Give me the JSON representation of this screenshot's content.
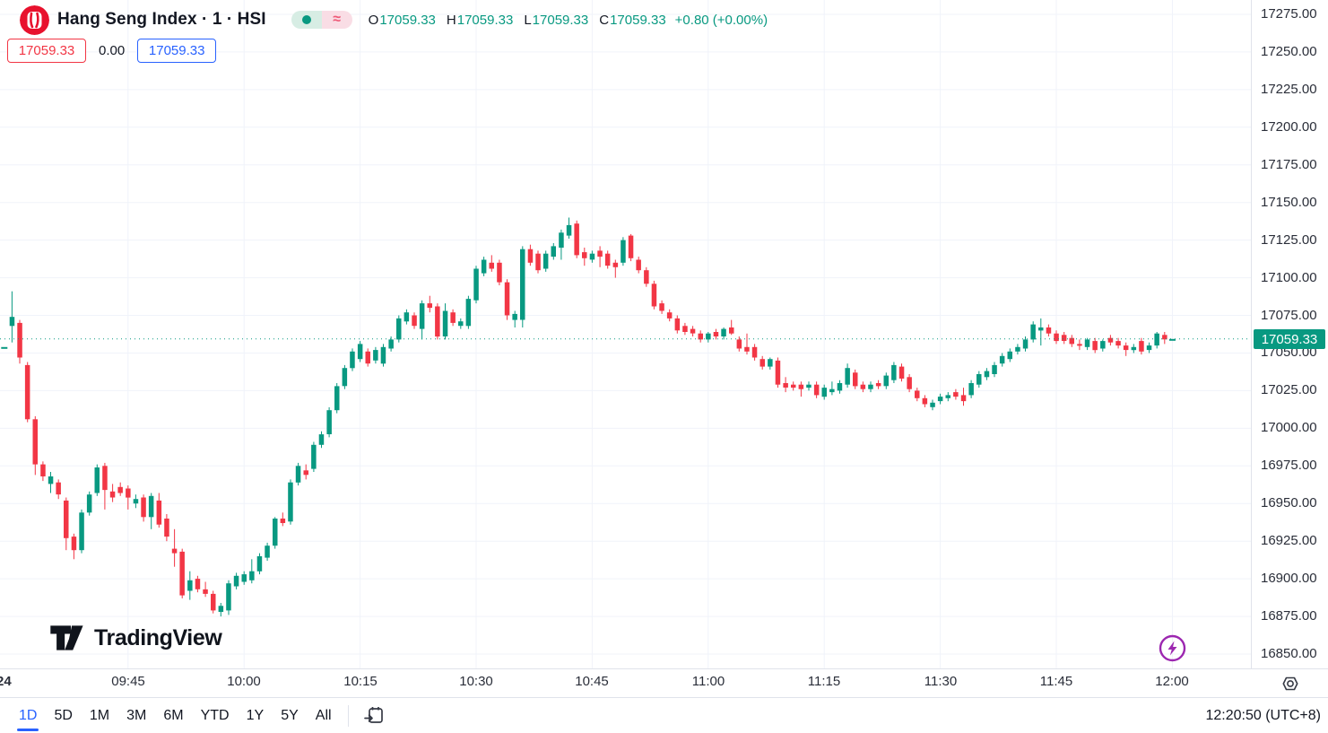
{
  "header": {
    "symbol_title": "Hang Seng Index · 1 · HSI",
    "ohlc": {
      "o_label": "O",
      "o": "17059.33",
      "h_label": "H",
      "h": "17059.33",
      "l_label": "L",
      "l": "17059.33",
      "c_label": "C",
      "c": "17059.33",
      "change": "+0.80 (+0.00%)"
    },
    "sell_price": "17059.33",
    "spread": "0.00",
    "buy_price": "17059.33"
  },
  "price_axis": {
    "ticks": [
      17275,
      17250,
      17225,
      17200,
      17175,
      17150,
      17125,
      17100,
      17075,
      17050,
      17025,
      17000,
      16975,
      16950,
      16925,
      16900,
      16875,
      16850
    ],
    "current_label": "17059.33"
  },
  "time_axis": {
    "date_label": "24",
    "ticks": [
      "09:45",
      "10:00",
      "10:15",
      "10:30",
      "10:45",
      "11:00",
      "11:15",
      "11:30",
      "11:45",
      "12:00"
    ]
  },
  "toolbar": {
    "ranges": [
      "1D",
      "5D",
      "1M",
      "3M",
      "6M",
      "YTD",
      "1Y",
      "5Y",
      "All"
    ],
    "active": "1D",
    "clock": "12:20:50 (UTC+8)"
  },
  "logo": {
    "wordmark": "TradingView"
  },
  "colors": {
    "up": "#089981",
    "down": "#f23645",
    "grid": "#f0f3fa",
    "dotted_line": "#089981",
    "price_tag_bg": "#089981",
    "accent_blue": "#2962ff",
    "sell_red": "#f23645",
    "purple": "#9c27b0"
  },
  "chart_data": {
    "type": "candlestick",
    "title": "Hang Seng Index 1-minute candles",
    "symbol": "HSI",
    "interval": "1",
    "session_start": "09:30",
    "session_end": "12:00",
    "interval_min": 1,
    "current_price": 17059.33,
    "change_text": "+0.80 (+0.00%)",
    "y_axis": {
      "min": 16850,
      "max": 17275,
      "tick_step": 25,
      "grid": true
    },
    "x_ticks": [
      "09:45",
      "10:00",
      "10:15",
      "10:30",
      "10:45",
      "11:00",
      "11:15",
      "11:30",
      "11:45",
      "12:00"
    ],
    "pre_session_tick": {
      "time": "09:29",
      "price": 17054
    },
    "candles_format": [
      "open",
      "high",
      "low",
      "close"
    ],
    "candles": [
      [
        17068,
        17091,
        17057,
        17074
      ],
      [
        17070,
        17072,
        17043,
        17047
      ],
      [
        17042,
        17044,
        17004,
        17006
      ],
      [
        17006,
        17008,
        16969,
        16976
      ],
      [
        16976,
        16978,
        16965,
        16968
      ],
      [
        16963,
        16971,
        16957,
        16968
      ],
      [
        16964,
        16966,
        16953,
        16956
      ],
      [
        16952,
        16954,
        16919,
        16927
      ],
      [
        16928,
        16930,
        16913,
        16919
      ],
      [
        16919,
        16946,
        16917,
        16944
      ],
      [
        16944,
        16958,
        16942,
        16956
      ],
      [
        16957,
        16976,
        16955,
        16974
      ],
      [
        16975,
        16977,
        16946,
        16959
      ],
      [
        16958,
        16963,
        16951,
        16954
      ],
      [
        16961,
        16964,
        16955,
        16957
      ],
      [
        16960,
        16962,
        16946,
        16954
      ],
      [
        16950,
        16956,
        16947,
        16953
      ],
      [
        16954,
        16956,
        16938,
        16941
      ],
      [
        16941,
        16957,
        16933,
        16955
      ],
      [
        16952,
        16957,
        16934,
        16936
      ],
      [
        16940,
        16943,
        16925,
        16928
      ],
      [
        16920,
        16933,
        16908,
        16917
      ],
      [
        16918,
        16920,
        16887,
        16889
      ],
      [
        16892,
        16905,
        16886,
        16899
      ],
      [
        16900,
        16902,
        16891,
        16893
      ],
      [
        16893,
        16898,
        16888,
        16890
      ],
      [
        16890,
        16892,
        16877,
        16879
      ],
      [
        16878,
        16884,
        16875,
        16882
      ],
      [
        16879,
        16899,
        16876,
        16897
      ],
      [
        16895,
        16904,
        16893,
        16902
      ],
      [
        16898,
        16905,
        16896,
        16903
      ],
      [
        16899,
        16913,
        16897,
        16905
      ],
      [
        16905,
        16917,
        16903,
        16915
      ],
      [
        16914,
        16924,
        16912,
        16922
      ],
      [
        16922,
        16941,
        16920,
        16940
      ],
      [
        16940,
        16944,
        16935,
        16937
      ],
      [
        16938,
        16966,
        16936,
        16964
      ],
      [
        16964,
        16977,
        16962,
        16975
      ],
      [
        16972,
        16976,
        16966,
        16969
      ],
      [
        16973,
        16991,
        16971,
        16989
      ],
      [
        16989,
        16998,
        16987,
        16996
      ],
      [
        16996,
        17014,
        16994,
        17012
      ],
      [
        17012,
        17030,
        17010,
        17028
      ],
      [
        17028,
        17042,
        17026,
        17040
      ],
      [
        17040,
        17053,
        17038,
        17051
      ],
      [
        17046,
        17058,
        17044,
        17056
      ],
      [
        17051,
        17053,
        17041,
        17043
      ],
      [
        17045,
        17054,
        17043,
        17052
      ],
      [
        17043,
        17056,
        17041,
        17054
      ],
      [
        17053,
        17061,
        17051,
        17059
      ],
      [
        17059,
        17075,
        17057,
        17073
      ],
      [
        17071,
        17079,
        17069,
        17077
      ],
      [
        17075,
        17077,
        17066,
        17068
      ],
      [
        17066,
        17085,
        17059,
        17083
      ],
      [
        17083,
        17088,
        17077,
        17080
      ],
      [
        17081,
        17083,
        17059,
        17061
      ],
      [
        17061,
        17083,
        17059,
        17078
      ],
      [
        17077,
        17079,
        17068,
        17070
      ],
      [
        17068,
        17073,
        17066,
        17071
      ],
      [
        17068,
        17088,
        17066,
        17086
      ],
      [
        17085,
        17108,
        17083,
        17106
      ],
      [
        17103,
        17114,
        17101,
        17112
      ],
      [
        17110,
        17115,
        17104,
        17106
      ],
      [
        17110,
        17112,
        17095,
        17097
      ],
      [
        17097,
        17099,
        17072,
        17075
      ],
      [
        17072,
        17078,
        17067,
        17076
      ],
      [
        17072,
        17121,
        17067,
        17119
      ],
      [
        17119,
        17122,
        17108,
        17110
      ],
      [
        17116,
        17118,
        17103,
        17105
      ],
      [
        17106,
        17118,
        17104,
        17116
      ],
      [
        17114,
        17123,
        17112,
        17121
      ],
      [
        17120,
        17132,
        17112,
        17130
      ],
      [
        17128,
        17140,
        17126,
        17135
      ],
      [
        17136,
        17138,
        17113,
        17115
      ],
      [
        17117,
        17120,
        17108,
        17113
      ],
      [
        17112,
        17118,
        17110,
        17116
      ],
      [
        17118,
        17121,
        17107,
        17114
      ],
      [
        17116,
        17118,
        17106,
        17108
      ],
      [
        17110,
        17112,
        17100,
        17107
      ],
      [
        17110,
        17127,
        17108,
        17125
      ],
      [
        17128,
        17129,
        17111,
        17113
      ],
      [
        17112,
        17114,
        17103,
        17105
      ],
      [
        17105,
        17107,
        17094,
        17096
      ],
      [
        17096,
        17098,
        17079,
        17081
      ],
      [
        17083,
        17085,
        17076,
        17078
      ],
      [
        17077,
        17079,
        17071,
        17073
      ],
      [
        17073,
        17075,
        17063,
        17065
      ],
      [
        17068,
        17070,
        17062,
        17064
      ],
      [
        17066,
        17068,
        17061,
        17063
      ],
      [
        17063,
        17065,
        17057,
        17059
      ],
      [
        17059,
        17064,
        17057,
        17063
      ],
      [
        17064,
        17066,
        17059,
        17061
      ],
      [
        17061,
        17067,
        17059,
        17066
      ],
      [
        17067,
        17072,
        17062,
        17063
      ],
      [
        17059,
        17061,
        17051,
        17053
      ],
      [
        17054,
        17063,
        17049,
        17051
      ],
      [
        17054,
        17056,
        17045,
        17047
      ],
      [
        17046,
        17048,
        17039,
        17041
      ],
      [
        17041,
        17047,
        17039,
        17046
      ],
      [
        17045,
        17047,
        17027,
        17029
      ],
      [
        17030,
        17034,
        17024,
        17027
      ],
      [
        17029,
        17031,
        17025,
        17027
      ],
      [
        17029,
        17031,
        17021,
        17026
      ],
      [
        17027,
        17031,
        17025,
        17029
      ],
      [
        17029,
        17031,
        17020,
        17022
      ],
      [
        17021,
        17029,
        17019,
        17027
      ],
      [
        17024,
        17031,
        17022,
        17026
      ],
      [
        17025,
        17032,
        17023,
        17030
      ],
      [
        17029,
        17043,
        17027,
        17040
      ],
      [
        17037,
        17039,
        17026,
        17028
      ],
      [
        17029,
        17031,
        17024,
        17026
      ],
      [
        17026,
        17031,
        17024,
        17029
      ],
      [
        17030,
        17032,
        17026,
        17028
      ],
      [
        17028,
        17037,
        17026,
        17035
      ],
      [
        17032,
        17044,
        17030,
        17042
      ],
      [
        17041,
        17043,
        17031,
        17033
      ],
      [
        17034,
        17036,
        17024,
        17026
      ],
      [
        17025,
        17027,
        17018,
        17020
      ],
      [
        17020,
        17022,
        17014,
        17016
      ],
      [
        17014,
        17019,
        17012,
        17017
      ],
      [
        17018,
        17023,
        17016,
        17021
      ],
      [
        17020,
        17024,
        17018,
        17022
      ],
      [
        17024,
        17026,
        17019,
        17021
      ],
      [
        17022,
        17027,
        17015,
        17018
      ],
      [
        17022,
        17032,
        17020,
        17030
      ],
      [
        17029,
        17038,
        17027,
        17036
      ],
      [
        17034,
        17040,
        17032,
        17038
      ],
      [
        17036,
        17044,
        17034,
        17042
      ],
      [
        17043,
        17050,
        17041,
        17048
      ],
      [
        17046,
        17053,
        17044,
        17051
      ],
      [
        17051,
        17056,
        17049,
        17054
      ],
      [
        17053,
        17061,
        17051,
        17059
      ],
      [
        17059,
        17071,
        17057,
        17069
      ],
      [
        17065,
        17073,
        17055,
        17067
      ],
      [
        17067,
        17069,
        17061,
        17063
      ],
      [
        17063,
        17065,
        17056,
        17058
      ],
      [
        17062,
        17064,
        17056,
        17058
      ],
      [
        17060,
        17062,
        17054,
        17056
      ],
      [
        17056,
        17059,
        17052,
        17055
      ],
      [
        17054,
        17060,
        17052,
        17059
      ],
      [
        17058,
        17060,
        17050,
        17052
      ],
      [
        17053,
        17059,
        17051,
        17058
      ],
      [
        17060,
        17062,
        17055,
        17057
      ],
      [
        17058,
        17060,
        17053,
        17055
      ],
      [
        17055,
        17057,
        17048,
        17052
      ],
      [
        17052,
        17056,
        17050,
        17054
      ],
      [
        17058,
        17060,
        17049,
        17051
      ],
      [
        17052,
        17057,
        17050,
        17055
      ],
      [
        17055,
        17064,
        17053,
        17063
      ],
      [
        17062,
        17064,
        17056,
        17059
      ],
      [
        17059.33,
        17059.33,
        17059.33,
        17059.33
      ]
    ]
  }
}
